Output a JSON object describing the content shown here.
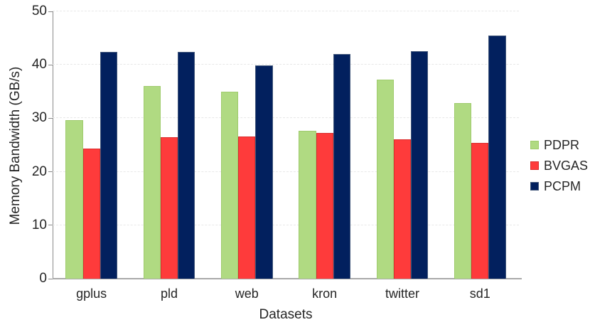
{
  "chart_data": {
    "type": "bar",
    "title": "",
    "xlabel": "Datasets",
    "ylabel": "Memory Bandwidth (GB/s)",
    "ylim": [
      0,
      50
    ],
    "yticks": [
      0,
      10,
      20,
      30,
      40,
      50
    ],
    "grid": "horizontal-dashed",
    "legend_position": "right-middle",
    "categories": [
      "gplus",
      "pld",
      "web",
      "kron",
      "twitter",
      "sd1"
    ],
    "series": [
      {
        "name": "PDPR",
        "color": "#b0da82",
        "border_color": "#9fcb6d",
        "values": [
          29.7,
          36.1,
          35.0,
          27.6,
          37.2,
          32.9
        ]
      },
      {
        "name": "BVGAS",
        "color": "#fe3b3b",
        "border_color": "#d92e2e",
        "values": [
          24.4,
          26.4,
          26.6,
          27.2,
          26.0,
          25.4
        ]
      },
      {
        "name": "PCPM",
        "color": "#02205e",
        "border_color": "#42577a",
        "values": [
          42.4,
          42.4,
          39.9,
          42.0,
          42.6,
          45.5
        ]
      }
    ]
  },
  "colors": {
    "background": "#ffffff",
    "text": "#262626",
    "y_axis_line": "#898989",
    "x_axis_line": "#a9a9a9",
    "gridline": "#e8e8e8"
  }
}
